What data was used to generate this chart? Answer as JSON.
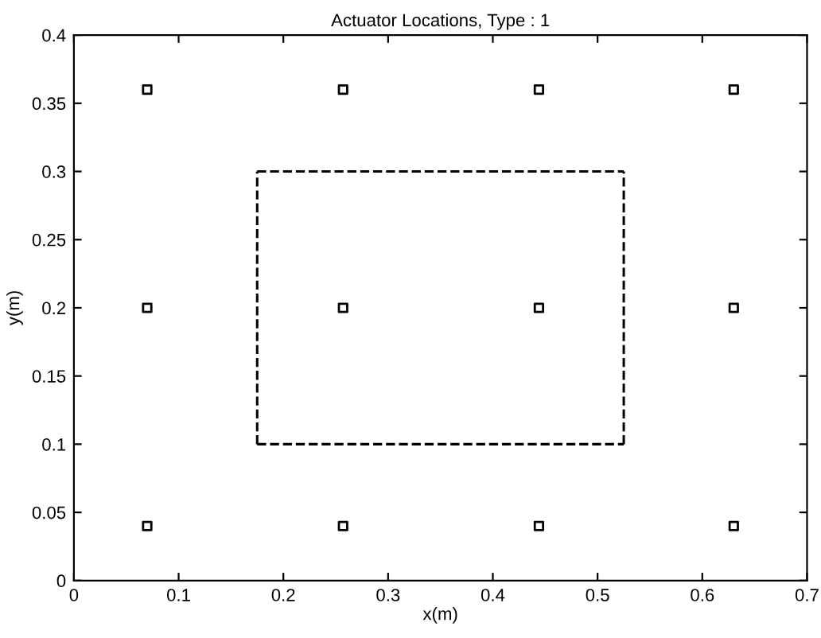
{
  "chart_data": {
    "type": "scatter",
    "title": "Actuator Locations, Type : 1",
    "xlabel": "x(m)",
    "ylabel": "y(m)",
    "xlim": [
      0,
      0.7
    ],
    "ylim": [
      0,
      0.4
    ],
    "xticks": [
      0,
      0.1,
      0.2,
      0.3,
      0.4,
      0.5,
      0.6,
      0.7
    ],
    "yticks": [
      0,
      0.05,
      0.1,
      0.15,
      0.2,
      0.25,
      0.3,
      0.35,
      0.4
    ],
    "grid": false,
    "legend": false,
    "series": [
      {
        "type": "scatter",
        "color": "#000000",
        "marker": "square",
        "x": [
          0.07,
          0.257,
          0.444,
          0.63,
          0.07,
          0.257,
          0.444,
          0.63,
          0.07,
          0.257,
          0.444,
          0.63
        ],
        "values": [
          0.36,
          0.36,
          0.36,
          0.36,
          0.2,
          0.2,
          0.2,
          0.2,
          0.04,
          0.04,
          0.04,
          0.04
        ]
      },
      {
        "type": "line",
        "color": "#000000",
        "line_style": "dashed",
        "marker": "none",
        "x": [
          0.175,
          0.525
        ],
        "values": [
          0.1,
          0.1
        ]
      },
      {
        "type": "line",
        "color": "#000000",
        "line_style": "dashed",
        "marker": "none",
        "x": [
          0.175,
          0.525
        ],
        "values": [
          0.3,
          0.3
        ]
      },
      {
        "type": "line",
        "color": "#000000",
        "line_style": "dashed",
        "marker": "none",
        "x": [
          0.175,
          0.175
        ],
        "values": [
          0.1,
          0.3
        ]
      },
      {
        "type": "line",
        "color": "#000000",
        "line_style": "dashed",
        "marker": "none",
        "x": [
          0.525,
          0.525
        ],
        "values": [
          0.1,
          0.3
        ]
      }
    ]
  }
}
